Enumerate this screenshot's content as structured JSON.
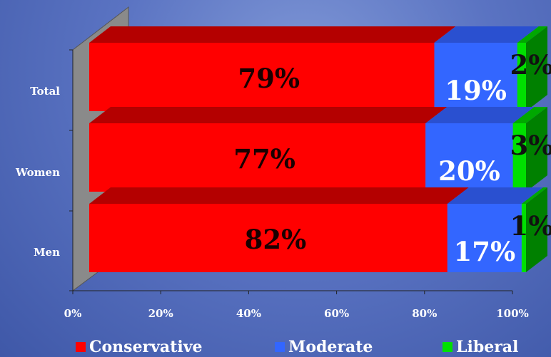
{
  "chart_data": {
    "type": "bar",
    "orientation": "horizontal",
    "stacked": true,
    "three_d": true,
    "categories": [
      "Total",
      "Women",
      "Men"
    ],
    "series": [
      {
        "name": "Conservative",
        "color": "#ff0000",
        "values": [
          79,
          77,
          82
        ]
      },
      {
        "name": "Moderate",
        "color": "#3366ff",
        "values": [
          19,
          20,
          17
        ]
      },
      {
        "name": "Liberal",
        "color": "#00e000",
        "values": [
          2,
          3,
          1
        ]
      }
    ],
    "data_labels": [
      [
        "79%",
        "77%",
        "82%"
      ],
      [
        "19%",
        "20%",
        "17%"
      ],
      [
        "2%",
        "3%",
        "1%"
      ]
    ],
    "xlim": [
      0,
      100
    ],
    "x_ticks": [
      "0%",
      "20%",
      "40%",
      "60%",
      "80%",
      "100%"
    ],
    "grid": false,
    "legend_position": "bottom",
    "title": "",
    "xlabel": "",
    "ylabel": ""
  }
}
